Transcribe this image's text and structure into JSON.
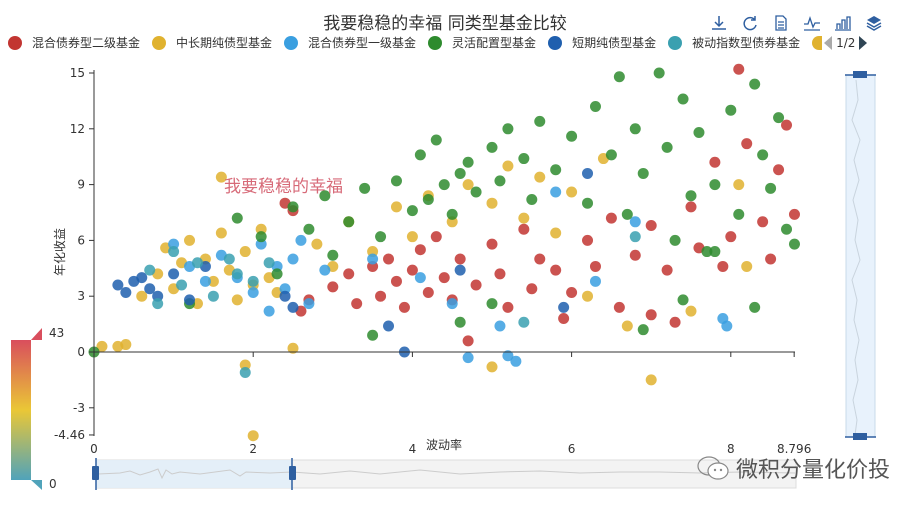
{
  "title": "我要稳稳的幸福 同类型基金比较",
  "toolbox": [
    {
      "name": "save-as-image-icon"
    },
    {
      "name": "restore-icon"
    },
    {
      "name": "data-view-icon"
    },
    {
      "name": "line-chart-icon"
    },
    {
      "name": "bar-chart-icon"
    },
    {
      "name": "stack-icon"
    }
  ],
  "legend": {
    "items": [
      {
        "label": "混合债券型二级基金",
        "color": "#c23531"
      },
      {
        "label": "中长期纯债型基金",
        "color": "#e0b22f"
      },
      {
        "label": "混合债券型一级基金",
        "color": "#3a9fe0"
      },
      {
        "label": "灵活配置型基金",
        "color": "#2e8b2e"
      },
      {
        "label": "短期纯债型基金",
        "color": "#1f5fae"
      },
      {
        "label": "被动指数型债券基金",
        "color": "#3aa0b0"
      }
    ],
    "partial_color": "#e0b22f",
    "page": "1/2"
  },
  "annotation": "我要稳稳的幸福",
  "visual_map": {
    "max_label": "43",
    "min_label": "0",
    "colors": [
      "#d94e5d",
      "#eac736",
      "#50a3ba"
    ]
  },
  "watermark": "微积分量化价投",
  "chart_data": {
    "type": "scatter",
    "title": "我要稳稳的幸福 同类型基金比较",
    "xlabel": "波动率",
    "ylabel": "年化收益",
    "xlim": [
      0,
      8.796
    ],
    "ylim": [
      -4.46,
      15
    ],
    "x_ticks": [
      "0",
      "2",
      "4",
      "6",
      "8",
      "8.796"
    ],
    "y_ticks": [
      "-4.46",
      "-3",
      "0",
      "3",
      "6",
      "9",
      "12",
      "15"
    ],
    "grid": false,
    "legend_position": "top",
    "visual_map_range": [
      0,
      43
    ],
    "series": [
      {
        "name": "混合债券型二级基金",
        "color": "#c23531",
        "points": [
          [
            2.6,
            2.2
          ],
          [
            2.7,
            2.8
          ],
          [
            3.0,
            3.5
          ],
          [
            3.2,
            4.2
          ],
          [
            3.3,
            2.6
          ],
          [
            3.5,
            4.6
          ],
          [
            3.6,
            3.0
          ],
          [
            3.7,
            5.0
          ],
          [
            3.8,
            3.8
          ],
          [
            3.9,
            2.4
          ],
          [
            4.0,
            4.4
          ],
          [
            4.1,
            5.5
          ],
          [
            4.2,
            3.2
          ],
          [
            4.3,
            6.2
          ],
          [
            4.4,
            4.0
          ],
          [
            4.5,
            2.8
          ],
          [
            4.6,
            5.0
          ],
          [
            4.8,
            3.6
          ],
          [
            5.0,
            5.8
          ],
          [
            5.1,
            4.2
          ],
          [
            5.2,
            2.4
          ],
          [
            5.4,
            6.6
          ],
          [
            5.5,
            3.4
          ],
          [
            5.6,
            5.0
          ],
          [
            5.8,
            4.4
          ],
          [
            6.0,
            3.2
          ],
          [
            6.2,
            6.0
          ],
          [
            6.3,
            4.6
          ],
          [
            6.5,
            7.2
          ],
          [
            6.6,
            2.4
          ],
          [
            6.8,
            5.2
          ],
          [
            7.0,
            6.8
          ],
          [
            7.2,
            4.4
          ],
          [
            7.3,
            1.6
          ],
          [
            7.5,
            7.8
          ],
          [
            7.6,
            5.6
          ],
          [
            7.8,
            10.2
          ],
          [
            7.9,
            4.6
          ],
          [
            8.0,
            6.2
          ],
          [
            8.2,
            11.2
          ],
          [
            8.4,
            7.0
          ],
          [
            8.5,
            5.0
          ],
          [
            8.6,
            9.8
          ],
          [
            8.7,
            12.2
          ],
          [
            8.1,
            15.2
          ],
          [
            8.8,
            7.4
          ],
          [
            7.0,
            2.0
          ],
          [
            5.9,
            1.8
          ],
          [
            4.7,
            0.6
          ],
          [
            2.4,
            8.0
          ],
          [
            2.5,
            7.6
          ]
        ]
      },
      {
        "name": "中长期纯债型基金",
        "color": "#e0b22f",
        "points": [
          [
            0.1,
            0.3
          ],
          [
            0.3,
            0.3
          ],
          [
            0.4,
            0.4
          ],
          [
            0.6,
            3.0
          ],
          [
            0.8,
            4.2
          ],
          [
            0.9,
            5.6
          ],
          [
            1.0,
            3.4
          ],
          [
            1.1,
            4.8
          ],
          [
            1.2,
            6.0
          ],
          [
            1.3,
            2.6
          ],
          [
            1.4,
            5.0
          ],
          [
            1.5,
            3.8
          ],
          [
            1.6,
            6.4
          ],
          [
            1.7,
            4.4
          ],
          [
            1.8,
            2.8
          ],
          [
            1.9,
            5.4
          ],
          [
            2.0,
            3.6
          ],
          [
            2.1,
            6.6
          ],
          [
            2.2,
            4.0
          ],
          [
            2.3,
            3.2
          ],
          [
            2.5,
            0.2
          ],
          [
            1.9,
            -0.7
          ],
          [
            2.0,
            -4.5
          ],
          [
            2.8,
            5.8
          ],
          [
            3.0,
            4.6
          ],
          [
            3.2,
            7.0
          ],
          [
            3.5,
            5.4
          ],
          [
            3.8,
            7.8
          ],
          [
            4.0,
            6.2
          ],
          [
            4.2,
            8.4
          ],
          [
            4.5,
            7.0
          ],
          [
            4.7,
            9.0
          ],
          [
            5.0,
            8.0
          ],
          [
            5.2,
            10.0
          ],
          [
            5.4,
            7.2
          ],
          [
            5.6,
            9.4
          ],
          [
            5.8,
            6.4
          ],
          [
            6.0,
            8.6
          ],
          [
            6.2,
            3.0
          ],
          [
            6.4,
            10.4
          ],
          [
            6.7,
            1.4
          ],
          [
            7.0,
            -1.5
          ],
          [
            7.5,
            2.2
          ],
          [
            8.2,
            4.6
          ],
          [
            8.1,
            9.0
          ],
          [
            1.6,
            9.4
          ],
          [
            5.0,
            -0.8
          ]
        ]
      },
      {
        "name": "混合债券型一级基金",
        "color": "#3a9fe0",
        "points": [
          [
            1.0,
            5.8
          ],
          [
            1.2,
            4.6
          ],
          [
            1.4,
            3.8
          ],
          [
            1.6,
            5.2
          ],
          [
            1.8,
            4.0
          ],
          [
            2.0,
            3.2
          ],
          [
            2.1,
            5.8
          ],
          [
            2.2,
            2.2
          ],
          [
            2.3,
            4.6
          ],
          [
            2.4,
            3.4
          ],
          [
            2.5,
            5.0
          ],
          [
            2.6,
            6.0
          ],
          [
            2.7,
            2.6
          ],
          [
            2.9,
            4.4
          ],
          [
            3.5,
            5.0
          ],
          [
            4.1,
            4.0
          ],
          [
            4.5,
            2.6
          ],
          [
            5.1,
            1.4
          ],
          [
            5.2,
            -0.2
          ],
          [
            5.3,
            -0.5
          ],
          [
            4.7,
            -0.3
          ],
          [
            5.8,
            8.6
          ],
          [
            6.3,
            3.8
          ],
          [
            6.8,
            7.0
          ],
          [
            7.9,
            1.8
          ],
          [
            7.95,
            1.4
          ]
        ]
      },
      {
        "name": "灵活配置型基金",
        "color": "#2e8b2e",
        "points": [
          [
            0.0,
            0.0
          ],
          [
            1.2,
            2.6
          ],
          [
            1.8,
            7.2
          ],
          [
            2.1,
            6.2
          ],
          [
            2.3,
            4.2
          ],
          [
            2.5,
            7.8
          ],
          [
            2.7,
            6.6
          ],
          [
            2.9,
            8.4
          ],
          [
            3.0,
            5.2
          ],
          [
            3.2,
            7.0
          ],
          [
            3.4,
            8.8
          ],
          [
            3.6,
            6.2
          ],
          [
            3.8,
            9.2
          ],
          [
            4.0,
            7.6
          ],
          [
            4.1,
            10.6
          ],
          [
            4.2,
            8.2
          ],
          [
            4.3,
            11.4
          ],
          [
            4.4,
            9.0
          ],
          [
            4.5,
            7.4
          ],
          [
            4.6,
            9.6
          ],
          [
            4.7,
            10.2
          ],
          [
            4.8,
            8.6
          ],
          [
            5.0,
            11.0
          ],
          [
            5.1,
            9.2
          ],
          [
            5.2,
            12.0
          ],
          [
            5.4,
            10.4
          ],
          [
            5.5,
            8.2
          ],
          [
            5.6,
            12.4
          ],
          [
            5.8,
            9.8
          ],
          [
            6.0,
            11.6
          ],
          [
            6.2,
            8.0
          ],
          [
            6.3,
            13.2
          ],
          [
            6.5,
            10.6
          ],
          [
            6.6,
            14.8
          ],
          [
            6.7,
            7.4
          ],
          [
            6.8,
            12.0
          ],
          [
            6.9,
            9.6
          ],
          [
            7.1,
            15.0
          ],
          [
            7.2,
            11.0
          ],
          [
            7.3,
            6.0
          ],
          [
            7.4,
            13.6
          ],
          [
            7.5,
            8.4
          ],
          [
            7.6,
            11.8
          ],
          [
            7.7,
            5.4
          ],
          [
            7.8,
            9.0
          ],
          [
            8.0,
            13.0
          ],
          [
            8.1,
            7.4
          ],
          [
            8.3,
            14.4
          ],
          [
            8.4,
            10.6
          ],
          [
            8.5,
            8.8
          ],
          [
            8.6,
            12.6
          ],
          [
            8.7,
            6.6
          ],
          [
            8.8,
            5.8
          ],
          [
            6.9,
            1.2
          ],
          [
            7.4,
            2.8
          ],
          [
            8.3,
            2.4
          ],
          [
            4.6,
            1.6
          ],
          [
            5.0,
            2.6
          ],
          [
            3.5,
            0.9
          ],
          [
            7.8,
            5.4
          ]
        ]
      },
      {
        "name": "短期纯债型基金",
        "color": "#1f5fae",
        "points": [
          [
            0.3,
            3.6
          ],
          [
            0.4,
            3.2
          ],
          [
            0.5,
            3.8
          ],
          [
            0.6,
            4.0
          ],
          [
            0.7,
            3.4
          ],
          [
            0.8,
            3.0
          ],
          [
            1.0,
            4.2
          ],
          [
            1.2,
            2.8
          ],
          [
            1.4,
            4.6
          ],
          [
            2.4,
            3.0
          ],
          [
            2.5,
            2.4
          ],
          [
            3.7,
            1.4
          ],
          [
            3.9,
            0.0
          ],
          [
            4.6,
            4.4
          ],
          [
            5.9,
            2.4
          ],
          [
            6.2,
            9.6
          ]
        ]
      },
      {
        "name": "被动指数型债券基金",
        "color": "#3aa0b0",
        "points": [
          [
            0.7,
            4.4
          ],
          [
            0.8,
            2.6
          ],
          [
            1.0,
            5.4
          ],
          [
            1.1,
            3.6
          ],
          [
            1.3,
            4.8
          ],
          [
            1.5,
            3.0
          ],
          [
            1.7,
            5.0
          ],
          [
            1.8,
            4.2
          ],
          [
            2.0,
            3.8
          ],
          [
            1.9,
            -1.1
          ],
          [
            2.2,
            4.8
          ],
          [
            5.4,
            1.6
          ],
          [
            6.8,
            6.2
          ]
        ]
      }
    ]
  },
  "axes": {
    "x": {
      "name": "波动率",
      "ticks": [
        {
          "v": 0,
          "label": "0"
        },
        {
          "v": 2,
          "label": "2"
        },
        {
          "v": 4,
          "label": "4"
        },
        {
          "v": 6,
          "label": "6"
        },
        {
          "v": 8,
          "label": "8"
        },
        {
          "v": 8.796,
          "label": "8.796"
        }
      ]
    },
    "y": {
      "name": "年化收益",
      "ticks": [
        {
          "v": 15,
          "label": "15"
        },
        {
          "v": 12,
          "label": "12"
        },
        {
          "v": 9,
          "label": "9"
        },
        {
          "v": 6,
          "label": "6"
        },
        {
          "v": 3,
          "label": "3"
        },
        {
          "v": 0,
          "label": "0"
        },
        {
          "v": -3,
          "label": "-3"
        },
        {
          "v": -4.46,
          "label": "-4.46"
        }
      ]
    }
  }
}
